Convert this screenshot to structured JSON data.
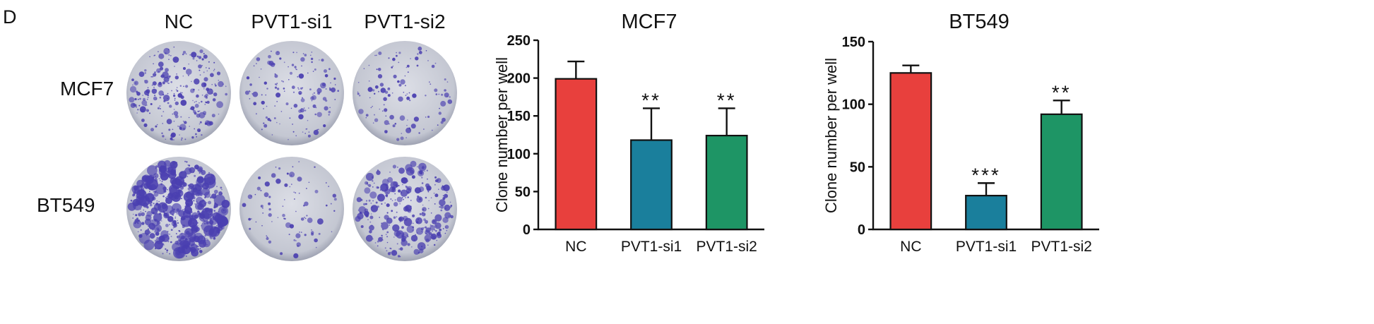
{
  "panel_label": "D",
  "colony": {
    "columns": [
      "NC",
      "PVT1-si1",
      "PVT1-si2"
    ],
    "rows": [
      "MCF7",
      "BT549"
    ],
    "stain_color": "#4a3fb0",
    "plate_color": "#c9ccd6"
  },
  "chart_data": [
    {
      "type": "bar",
      "title": "MCF7",
      "ylabel": "Clone number per well",
      "xlabel": "",
      "categories": [
        "NC",
        "PVT1-si1",
        "PVT1-si2"
      ],
      "values": [
        199,
        118,
        124
      ],
      "errors": [
        23,
        42,
        36
      ],
      "annotations": [
        "",
        "**",
        "**"
      ],
      "colors": [
        "#e8403d",
        "#1a7f9c",
        "#1e9565"
      ],
      "ylim": [
        0,
        250
      ],
      "yticks": [
        0,
        50,
        100,
        150,
        200,
        250
      ],
      "grid": false
    },
    {
      "type": "bar",
      "title": "BT549",
      "ylabel": "Clone number per well",
      "xlabel": "",
      "categories": [
        "NC",
        "PVT1-si1",
        "PVT1-si2"
      ],
      "values": [
        125,
        27,
        92
      ],
      "errors": [
        6,
        10,
        11
      ],
      "annotations": [
        "",
        "***",
        "**"
      ],
      "colors": [
        "#e8403d",
        "#1a7f9c",
        "#1e9565"
      ],
      "ylim": [
        0,
        150
      ],
      "yticks": [
        0,
        50,
        100,
        150
      ],
      "grid": false
    }
  ]
}
